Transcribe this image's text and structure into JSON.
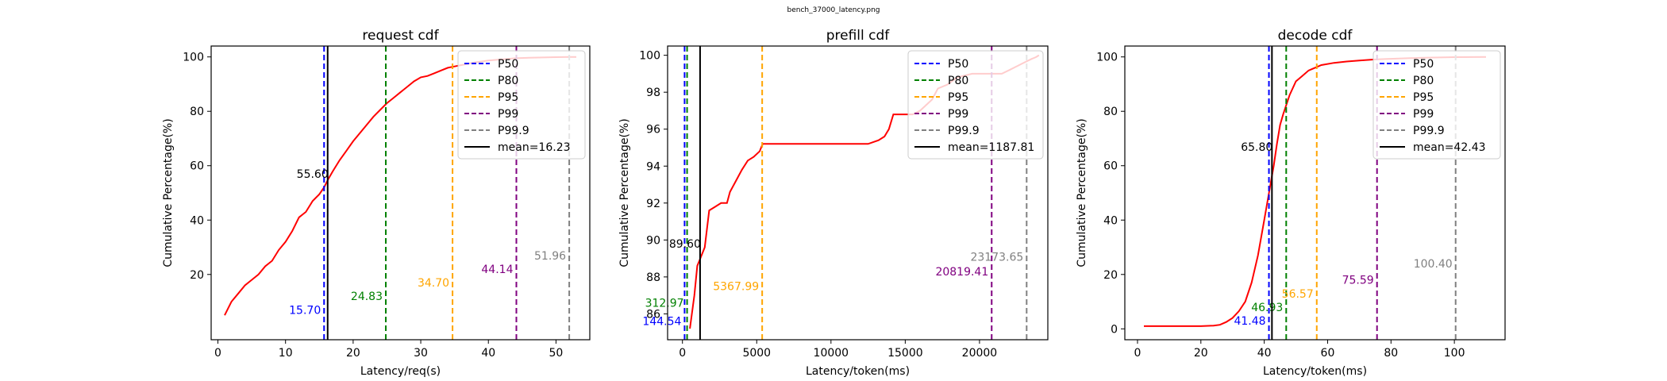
{
  "figure_title": "bench_37000_latency.png",
  "chart_data": [
    {
      "type": "line",
      "title": "request cdf",
      "xlabel": "Latency/req(s)",
      "ylabel": "Cumulative Percentage(%)",
      "xlim": [
        -1,
        55
      ],
      "ylim": [
        -4,
        104
      ],
      "xticks": [
        0,
        10,
        20,
        30,
        40,
        50
      ],
      "yticks": [
        20,
        40,
        60,
        80,
        100
      ],
      "grid": false,
      "legend_position": "top-right",
      "series": [
        {
          "color": "#ff0000",
          "x": [
            1.0,
            2.0,
            3.0,
            4.0,
            5.0,
            6.0,
            7.0,
            8.0,
            9.0,
            10.0,
            11.0,
            12.0,
            13.0,
            14.0,
            15.0,
            15.7,
            16.3,
            17.0,
            18.0,
            19.0,
            20.0,
            21.0,
            22.0,
            23.0,
            24.0,
            25.0,
            26.0,
            27.0,
            28.0,
            29.0,
            30.0,
            31.0,
            32.0,
            33.0,
            34.0,
            35.0,
            36.0,
            38.0,
            40.0,
            42.0,
            44.0,
            46.0,
            48.0,
            50.0,
            52.0,
            53.0
          ],
          "y": [
            5,
            10,
            13,
            16,
            18,
            20,
            23,
            25,
            29,
            32,
            36,
            41,
            43,
            47,
            49.5,
            52,
            55,
            58,
            62,
            65.5,
            69,
            72,
            75,
            78,
            80.5,
            83,
            85,
            87,
            89,
            91,
            92.5,
            93,
            94,
            95,
            96,
            96.5,
            97,
            98,
            98.7,
            99.1,
            99.5,
            99.7,
            99.8,
            99.9,
            100,
            100
          ]
        }
      ],
      "percentiles": [
        {
          "name": "P50",
          "value": 15.7,
          "label": "15.70",
          "color": "#0000ff",
          "label_y": 7
        },
        {
          "name": "P80",
          "value": 24.83,
          "label": "24.83",
          "color": "#008000",
          "label_y": 12
        },
        {
          "name": "P95",
          "value": 34.7,
          "label": "34.70",
          "color": "#ffa500",
          "label_y": 17
        },
        {
          "name": "P99",
          "value": 44.14,
          "label": "44.14",
          "color": "#800080",
          "label_y": 22
        },
        {
          "name": "P99.9",
          "value": 51.96,
          "label": "51.96",
          "color": "#808080",
          "label_y": 27
        }
      ],
      "mean": {
        "name": "mean=16.23",
        "value": 16.23,
        "color": "#000000"
      },
      "mean_annotation": {
        "text": "55.60",
        "x": 16.23,
        "y": 57
      }
    },
    {
      "type": "line",
      "title": "prefill cdf",
      "xlabel": "Latency/token(ms)",
      "ylabel": "Cumulative Percentage(%)",
      "xlim": [
        -1000,
        24600
      ],
      "ylim": [
        84.6,
        100.5
      ],
      "xticks": [
        0,
        5000,
        10000,
        15000,
        20000
      ],
      "yticks": [
        86,
        88,
        90,
        92,
        94,
        96,
        98,
        100
      ],
      "grid": false,
      "legend_position": "top-right",
      "series": [
        {
          "color": "#ff0000",
          "x": [
            500,
            800,
            1000,
            1200,
            1500,
            1800,
            2200,
            2600,
            3000,
            3200,
            3600,
            4000,
            4400,
            4800,
            5200,
            5400,
            6000,
            8000,
            10000,
            12500,
            13200,
            13600,
            13900,
            14200,
            15000,
            15500,
            16000,
            16800,
            17200,
            17800,
            18500,
            19500,
            20500,
            21000,
            21500,
            22000,
            22500,
            23000,
            23500,
            23800,
            24000
          ],
          "y": [
            85.2,
            87.0,
            88.6,
            89.0,
            89.6,
            91.6,
            91.8,
            92.0,
            92.0,
            92.6,
            93.2,
            93.8,
            94.3,
            94.5,
            94.8,
            95.2,
            95.2,
            95.2,
            95.2,
            95.2,
            95.4,
            95.6,
            96.0,
            96.8,
            96.8,
            96.8,
            97.0,
            97.6,
            98.2,
            98.4,
            98.8,
            99.0,
            99.0,
            99.0,
            99.0,
            99.2,
            99.4,
            99.6,
            99.8,
            99.9,
            100.0
          ]
        }
      ],
      "percentiles": [
        {
          "name": "P50",
          "value": 144.54,
          "label": "144.54",
          "color": "#0000ff",
          "label_y": 85.6
        },
        {
          "name": "P80",
          "value": 312.97,
          "label": "312.97",
          "color": "#008000",
          "label_y": 86.6
        },
        {
          "name": "P95",
          "value": 5367.99,
          "label": "5367.99",
          "color": "#ffa500",
          "label_y": 87.5
        },
        {
          "name": "P99",
          "value": 20819.41,
          "label": "20819.41",
          "color": "#800080",
          "label_y": 88.3
        },
        {
          "name": "P99.9",
          "value": 23173.65,
          "label": "23173.65",
          "color": "#808080",
          "label_y": 89.1
        }
      ],
      "mean": {
        "name": "mean=1187.81",
        "value": 1187.81,
        "color": "#000000"
      },
      "mean_annotation": {
        "text": "89.60",
        "x": 1187.81,
        "y": 89.8
      }
    },
    {
      "type": "line",
      "title": "decode cdf",
      "xlabel": "Latency/token(ms)",
      "ylabel": "Cumulative Percentage(%)",
      "xlim": [
        -4,
        116
      ],
      "ylim": [
        -4,
        104
      ],
      "xticks": [
        0,
        20,
        40,
        60,
        80,
        100
      ],
      "yticks": [
        0,
        20,
        40,
        60,
        80,
        100
      ],
      "grid": false,
      "legend_position": "top-right",
      "series": [
        {
          "color": "#ff0000",
          "x": [
            2,
            10,
            20,
            24,
            26,
            28,
            30,
            32,
            34,
            36,
            38,
            40,
            41.5,
            43,
            44,
            45,
            46,
            48,
            50,
            52,
            54,
            56,
            58,
            62,
            66,
            70,
            74,
            78,
            85,
            90,
            100,
            110
          ],
          "y": [
            1,
            1,
            1,
            1.2,
            1.5,
            2.5,
            4,
            6.5,
            10,
            17,
            27,
            40,
            50,
            60,
            68,
            75,
            79,
            86,
            91,
            93,
            95,
            96,
            97,
            97.8,
            98.3,
            98.7,
            99.0,
            99.2,
            99.5,
            99.7,
            99.9,
            100
          ]
        }
      ],
      "percentiles": [
        {
          "name": "P50",
          "value": 41.48,
          "label": "41.48",
          "color": "#0000ff",
          "label_y": 3
        },
        {
          "name": "P80",
          "value": 46.93,
          "label": "46.93",
          "color": "#008000",
          "label_y": 8
        },
        {
          "name": "P95",
          "value": 56.57,
          "label": "56.57",
          "color": "#ffa500",
          "label_y": 13
        },
        {
          "name": "P99",
          "value": 75.59,
          "label": "75.59",
          "color": "#800080",
          "label_y": 18
        },
        {
          "name": "P99.9",
          "value": 100.4,
          "label": "100.40",
          "color": "#808080",
          "label_y": 24
        }
      ],
      "mean": {
        "name": "mean=42.43",
        "value": 42.43,
        "color": "#000000"
      },
      "mean_annotation": {
        "text": "65.80",
        "x": 42.43,
        "y": 67
      }
    }
  ]
}
